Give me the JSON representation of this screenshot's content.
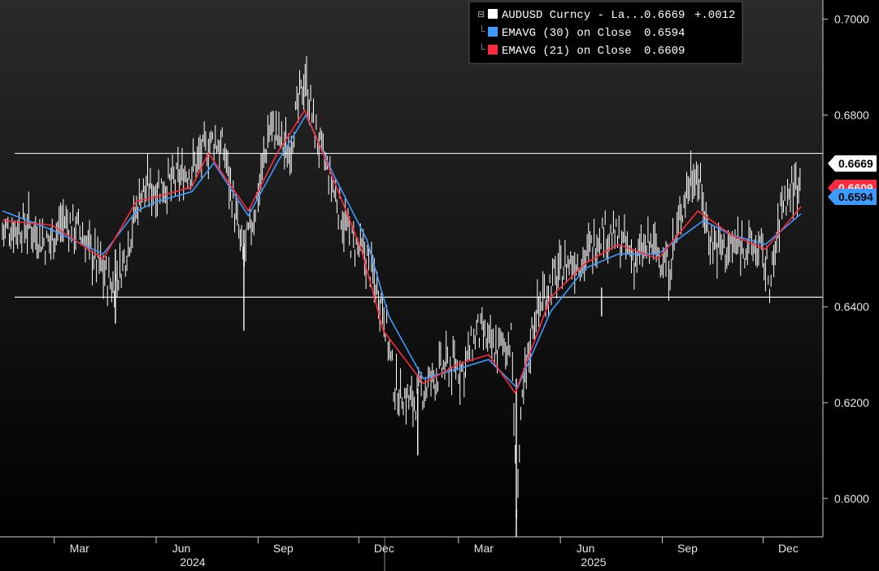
{
  "chart_data": {
    "type": "line",
    "instrument": "AUDUSD Curncy",
    "ylim": [
      0.592,
      0.704
    ],
    "yticks": [
      "0.7000",
      "0.6800",
      "0.6400",
      "0.6200",
      "0.6000"
    ],
    "x_months": [
      "Mar",
      "Jun",
      "Sep",
      "Dec",
      "Mar",
      "Jun",
      "Sep",
      "Dec"
    ],
    "x_years": [
      "2024",
      "2025"
    ],
    "reference_lines": [
      0.672,
      0.642
    ],
    "legend": [
      {
        "label": "AUDUSD Curncy - La...",
        "value": "0.6669",
        "change": "+.0012",
        "color": "#ffffff"
      },
      {
        "label": "EMAVG (30)  on Close",
        "value": "0.6594",
        "color": "#3d9bff"
      },
      {
        "label": "EMAVG (21)  on Close",
        "value": "0.6609",
        "color": "#ff2a3d"
      }
    ],
    "badges": [
      {
        "value": "0.6669",
        "bg": "#ffffff",
        "fg": "#000000"
      },
      {
        "value": "0.6609",
        "bg": "#ff2a3d",
        "fg": "#ffffff"
      },
      {
        "value": "0.6594",
        "bg": "#3d9bff",
        "fg": "#000000"
      }
    ],
    "series": [
      {
        "name": "AUDUSD Curncy",
        "color": "#ffffff",
        "x": [
          "2024-01-01",
          "2024-01-25",
          "2024-02-10",
          "2024-02-25",
          "2024-03-10",
          "2024-03-25",
          "2024-04-10",
          "2024-04-20",
          "2024-05-05",
          "2024-05-20",
          "2024-06-05",
          "2024-06-20",
          "2024-07-10",
          "2024-07-20",
          "2024-08-05",
          "2024-08-15",
          "2024-08-30",
          "2024-09-15",
          "2024-09-30",
          "2024-10-10",
          "2024-10-25",
          "2024-11-10",
          "2024-11-25",
          "2024-12-10",
          "2024-12-20",
          "2025-01-05",
          "2025-01-20",
          "2025-02-05",
          "2025-02-20",
          "2025-03-05",
          "2025-03-20",
          "2025-04-05",
          "2025-04-09",
          "2025-04-15",
          "2025-04-25",
          "2025-05-10",
          "2025-05-25",
          "2025-06-10",
          "2025-06-25",
          "2025-07-10",
          "2025-07-25",
          "2025-08-10",
          "2025-08-25",
          "2025-09-10",
          "2025-09-18",
          "2025-10-01",
          "2025-10-15",
          "2025-10-30",
          "2025-11-15",
          "2025-11-25",
          "2025-12-05",
          "2025-12-15",
          "2025-12-22"
        ],
        "y": [
          0.656,
          0.657,
          0.653,
          0.658,
          0.656,
          0.65,
          0.644,
          0.65,
          0.664,
          0.665,
          0.666,
          0.669,
          0.675,
          0.672,
          0.65,
          0.659,
          0.678,
          0.672,
          0.688,
          0.676,
          0.665,
          0.654,
          0.65,
          0.64,
          0.623,
          0.62,
          0.624,
          0.628,
          0.627,
          0.635,
          0.631,
          0.633,
          0.598,
          0.622,
          0.638,
          0.645,
          0.649,
          0.65,
          0.656,
          0.654,
          0.65,
          0.653,
          0.648,
          0.665,
          0.669,
          0.654,
          0.652,
          0.653,
          0.652,
          0.645,
          0.662,
          0.665,
          0.6669
        ]
      },
      {
        "name": "EMAVG (30)",
        "color": "#3d9bff",
        "x": [
          "2024-01-01",
          "2024-02-15",
          "2024-04-01",
          "2024-05-01",
          "2024-05-20",
          "2024-06-20",
          "2024-07-10",
          "2024-08-10",
          "2024-09-05",
          "2024-10-01",
          "2024-10-25",
          "2024-11-25",
          "2024-12-15",
          "2025-01-15",
          "2025-02-15",
          "2025-03-15",
          "2025-04-10",
          "2025-05-10",
          "2025-06-10",
          "2025-07-10",
          "2025-08-15",
          "2025-09-25",
          "2025-10-20",
          "2025-11-20",
          "2025-12-22"
        ],
        "y": [
          0.66,
          0.656,
          0.651,
          0.66,
          0.662,
          0.664,
          0.67,
          0.659,
          0.67,
          0.68,
          0.668,
          0.654,
          0.638,
          0.625,
          0.627,
          0.629,
          0.623,
          0.639,
          0.648,
          0.651,
          0.651,
          0.658,
          0.655,
          0.653,
          0.6594
        ]
      },
      {
        "name": "EMAVG (21)",
        "color": "#ff2a3d",
        "x": [
          "2024-01-01",
          "2024-02-15",
          "2024-04-01",
          "2024-05-01",
          "2024-05-20",
          "2024-06-20",
          "2024-07-05",
          "2024-08-10",
          "2024-09-05",
          "2024-09-30",
          "2024-10-20",
          "2024-11-20",
          "2024-12-10",
          "2025-01-15",
          "2025-02-15",
          "2025-03-15",
          "2025-04-08",
          "2025-05-10",
          "2025-06-10",
          "2025-07-10",
          "2025-08-15",
          "2025-09-20",
          "2025-10-20",
          "2025-11-20",
          "2025-12-22"
        ],
        "y": [
          0.658,
          0.657,
          0.65,
          0.662,
          0.663,
          0.665,
          0.672,
          0.66,
          0.672,
          0.681,
          0.67,
          0.652,
          0.635,
          0.624,
          0.628,
          0.63,
          0.622,
          0.642,
          0.649,
          0.653,
          0.65,
          0.66,
          0.655,
          0.652,
          0.6609
        ]
      }
    ]
  }
}
